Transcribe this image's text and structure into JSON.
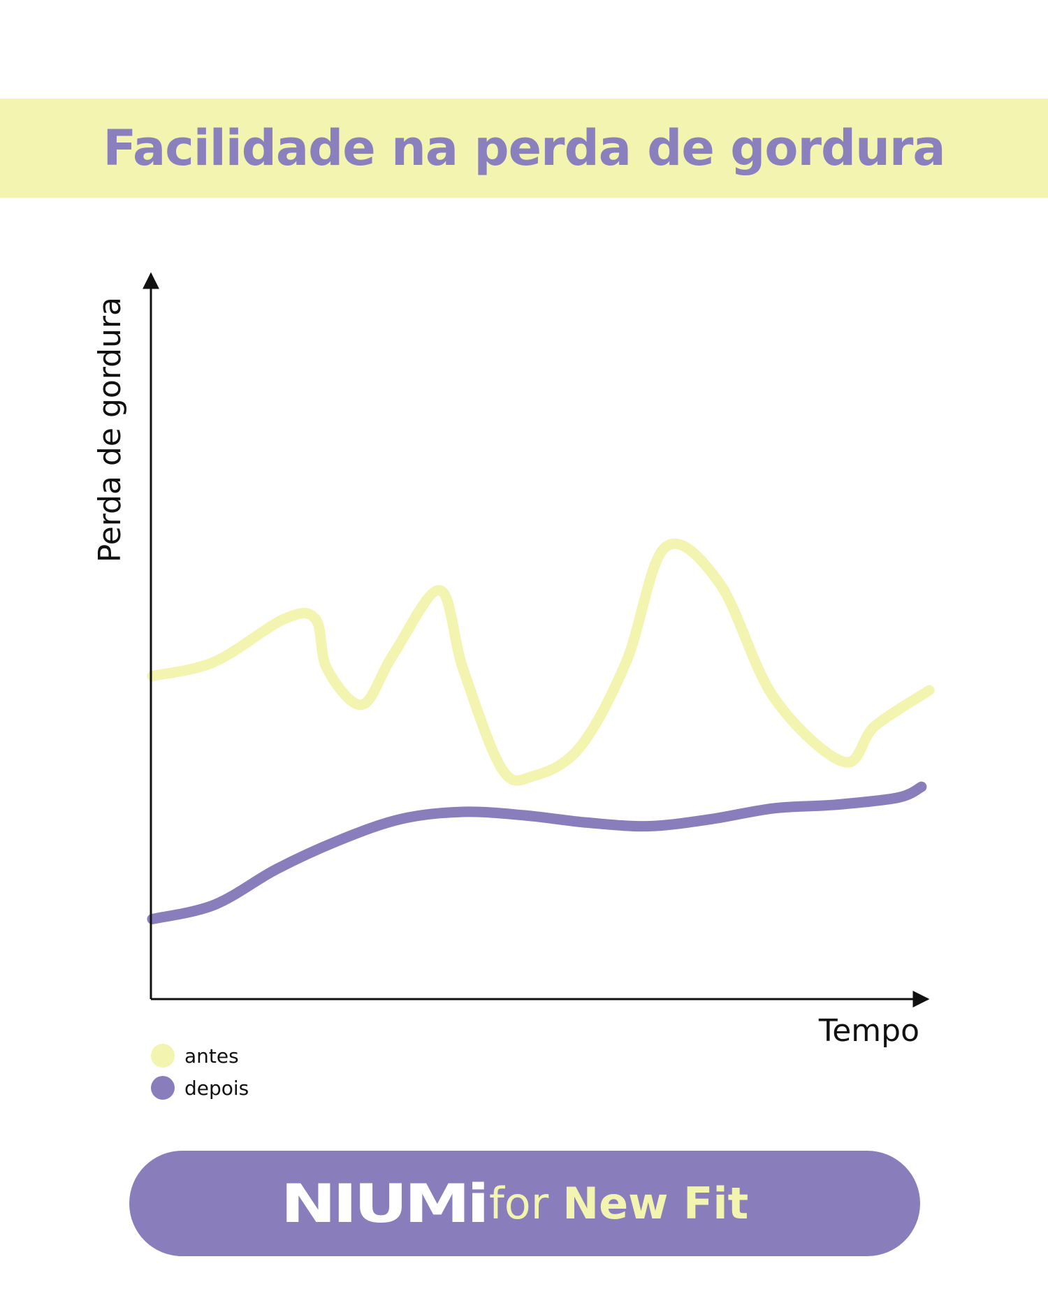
{
  "header": {
    "title": "Facilidade na perda de gordura"
  },
  "chart_data": {
    "type": "line",
    "title": "Facilidade na perda de gordura",
    "xlabel": "Tempo",
    "ylabel": "Perda de gordura",
    "xlim": [
      0,
      100
    ],
    "ylim": [
      0,
      100
    ],
    "grid": false,
    "axis_tick_labels": false,
    "legend_position": "bottom-left",
    "series": [
      {
        "name": "antes",
        "color": "#f2f4b0",
        "x": [
          0,
          8,
          17,
          21,
          22.5,
          27,
          31,
          37,
          40,
          45,
          49,
          55,
          61,
          66,
          73,
          80,
          89,
          93,
          100
        ],
        "y": [
          45,
          47,
          53,
          53,
          46,
          41,
          48,
          57,
          46,
          32,
          31,
          35,
          47,
          63,
          58,
          42,
          33,
          38,
          43
        ]
      },
      {
        "name": "depois",
        "color": "#897ebb",
        "x": [
          0,
          8,
          16,
          24,
          32,
          40,
          48,
          56,
          64,
          72,
          80,
          88,
          96,
          99
        ],
        "y": [
          11,
          13,
          18,
          22,
          25,
          26,
          25.5,
          24.5,
          24,
          25,
          26.5,
          27,
          28,
          29.5
        ]
      }
    ]
  },
  "legend": {
    "items": [
      {
        "label": "antes",
        "color": "#f2f4b0"
      },
      {
        "label": "depois",
        "color": "#897ebb"
      }
    ]
  },
  "footer": {
    "logo_text": "NIUMi",
    "connector": "for",
    "brand": "New Fit"
  }
}
